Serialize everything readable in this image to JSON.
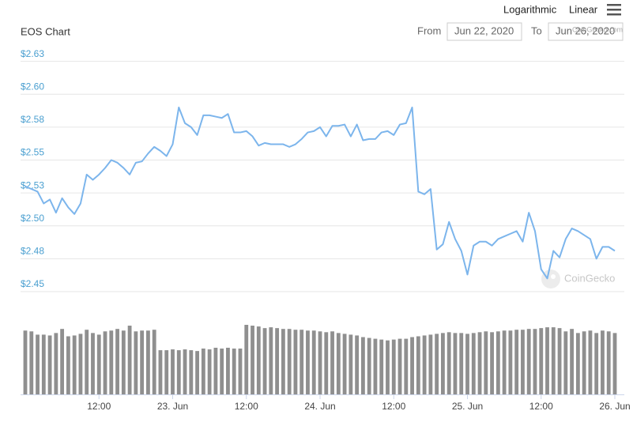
{
  "chart_data": {
    "type": "line",
    "title": "EOS Chart",
    "scale_options": [
      "Logarithmic",
      "Linear"
    ],
    "range": {
      "from_label": "From",
      "from": "Jun 22, 2020",
      "to_label": "To",
      "to": "Jun 26, 2020"
    },
    "credit": "CoinGecko.com",
    "watermark": "CoinGecko",
    "categories": [
      null,
      null,
      null,
      null,
      null,
      null,
      null,
      null,
      null,
      null,
      null,
      null,
      "12:00",
      null,
      null,
      null,
      null,
      null,
      null,
      null,
      null,
      null,
      null,
      null,
      "23. Jun",
      null,
      null,
      null,
      null,
      null,
      null,
      null,
      null,
      null,
      null,
      null,
      "12:00",
      null,
      null,
      null,
      null,
      null,
      null,
      null,
      null,
      null,
      null,
      null,
      "24. Jun",
      null,
      null,
      null,
      null,
      null,
      null,
      null,
      null,
      null,
      null,
      null,
      "12:00",
      null,
      null,
      null,
      null,
      null,
      null,
      null,
      null,
      null,
      null,
      null,
      "25. Jun",
      null,
      null,
      null,
      null,
      null,
      null,
      null,
      null,
      null,
      null,
      null,
      "12:00",
      null,
      null,
      null,
      null,
      null,
      null,
      null,
      null,
      null,
      null,
      null,
      "26. Jun"
    ],
    "values": [
      2.53,
      2.528,
      2.526,
      2.517,
      2.52,
      2.51,
      2.521,
      2.514,
      2.509,
      2.517,
      2.539,
      2.535,
      2.539,
      2.544,
      2.55,
      2.548,
      2.544,
      2.539,
      2.548,
      2.549,
      2.555,
      2.56,
      2.557,
      2.553,
      2.562,
      2.59,
      2.578,
      2.575,
      2.569,
      2.584,
      2.584,
      2.583,
      2.582,
      2.585,
      2.571,
      2.571,
      2.572,
      2.568,
      2.561,
      2.563,
      2.562,
      2.562,
      2.562,
      2.56,
      2.562,
      2.566,
      2.571,
      2.572,
      2.575,
      2.568,
      2.576,
      2.576,
      2.577,
      2.568,
      2.577,
      2.565,
      2.566,
      2.566,
      2.571,
      2.572,
      2.569,
      2.577,
      2.578,
      2.59,
      2.526,
      2.524,
      2.528,
      2.482,
      2.486,
      2.503,
      2.49,
      2.481,
      2.463,
      2.485,
      2.488,
      2.488,
      2.485,
      2.49,
      2.492,
      2.494,
      2.496,
      2.488,
      2.51,
      2.496,
      2.467,
      2.46,
      2.481,
      2.476,
      2.49,
      2.498,
      2.496,
      2.493,
      2.49,
      2.475,
      2.484,
      2.484,
      2.481
    ],
    "color": "#7cb5ec",
    "volume_values": [
      78,
      77,
      73,
      73,
      72,
      75,
      80,
      71,
      72,
      74,
      79,
      75,
      73,
      77,
      78,
      80,
      78,
      84,
      77,
      78,
      78,
      79,
      54,
      54,
      55,
      54,
      55,
      54,
      53,
      56,
      55,
      57,
      56,
      57,
      56,
      56,
      85,
      84,
      83,
      81,
      82,
      81,
      80,
      80,
      79,
      79,
      78,
      78,
      77,
      76,
      77,
      75,
      74,
      73,
      72,
      70,
      69,
      68,
      67,
      66,
      67,
      68,
      68,
      70,
      71,
      72,
      73,
      74,
      75,
      76,
      75,
      75,
      74,
      75,
      76,
      77,
      76,
      77,
      78,
      78,
      79,
      79,
      80,
      80,
      81,
      82,
      82,
      81,
      77,
      80,
      75,
      77,
      78,
      75,
      78,
      77,
      75
    ],
    "volume_color": "#8f8f8f",
    "ylim": [
      2.45,
      2.635
    ],
    "yticks": [
      {
        "value": 2.45,
        "label": "$2.45"
      },
      {
        "value": 2.475,
        "label": "$2.48"
      },
      {
        "value": 2.5,
        "label": "$2.50"
      },
      {
        "value": 2.525,
        "label": "$2.53"
      },
      {
        "value": 2.55,
        "label": "$2.55"
      },
      {
        "value": 2.575,
        "label": "$2.58"
      },
      {
        "value": 2.6,
        "label": "$2.60"
      },
      {
        "value": 2.625,
        "label": "$2.63"
      }
    ],
    "grid": true
  }
}
